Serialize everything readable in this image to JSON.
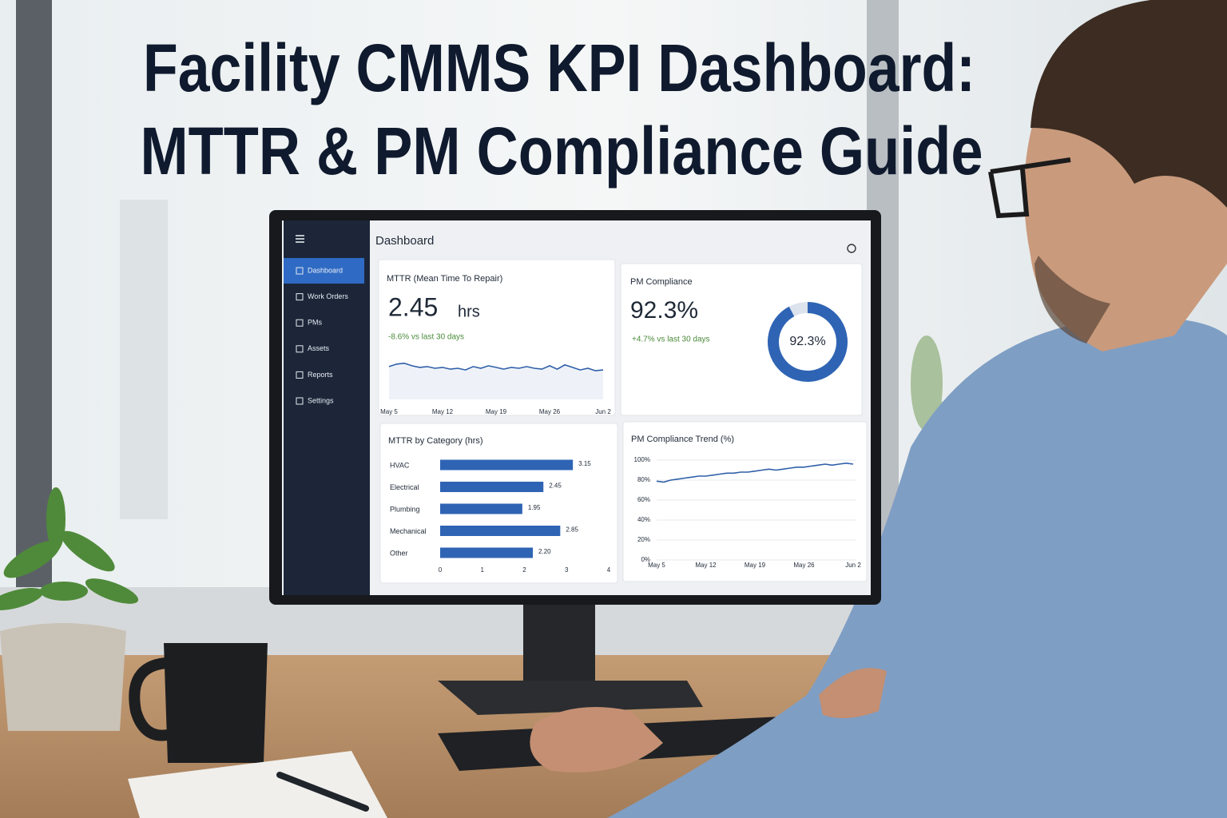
{
  "headline": [
    "Facility CMMS KPI Dashboard:",
    "MTTR & PM Compliance Guide"
  ],
  "sidebar": {
    "items": [
      "Dashboard",
      "Work Orders",
      "PMs",
      "Assets",
      "Reports",
      "Settings"
    ],
    "active": 0
  },
  "header": {
    "title": "Dashboard"
  },
  "mttr_card": {
    "title": "MTTR (Mean Time To Repair)",
    "value": "2.45",
    "unit": "hrs",
    "change": "-8.6% vs last 30 days",
    "chart": {
      "type": "line",
      "color": "#2f5fa8",
      "x_labels": [
        "May 5",
        "May 12",
        "May 19",
        "May 26",
        "Jun 2"
      ],
      "values": [
        2.6,
        2.75,
        2.8,
        2.65,
        2.55,
        2.6,
        2.5,
        2.55,
        2.45,
        2.5,
        2.4,
        2.6,
        2.5,
        2.65,
        2.55,
        2.45,
        2.55,
        2.5,
        2.6,
        2.5,
        2.45,
        2.65,
        2.45,
        2.7,
        2.55,
        2.4,
        2.5,
        2.35,
        2.4
      ],
      "ylim": [
        1.5,
        3.5
      ]
    }
  },
  "pm_card": {
    "title": "PM Compliance",
    "value": "92.3%",
    "change": "+4.7% vs last 30 days",
    "gauge": {
      "type": "donut",
      "value": 92.3,
      "label": "92.3%",
      "max": 100,
      "color": "#2f64b4",
      "track_color": "#dde3ec"
    }
  },
  "category_card": {
    "title": "MTTR by Category (hrs)",
    "chart": {
      "type": "bar",
      "orientation": "horizontal",
      "color": "#2f64b4",
      "categories": [
        "HVAC",
        "Electrical",
        "Plumbing",
        "Mechanical",
        "Other"
      ],
      "values": [
        3.15,
        2.45,
        1.95,
        2.85,
        2.2
      ],
      "value_labels": [
        "3.15",
        "2.45",
        "1.95",
        "2.85",
        "2.20"
      ],
      "xlim": [
        0,
        4
      ],
      "xticks": [
        0,
        1,
        2,
        3,
        4
      ]
    }
  },
  "trend_card": {
    "title": "PM Compliance Trend (%)",
    "chart": {
      "type": "line",
      "color": "#2f5fa8",
      "grid": true,
      "x_labels": [
        "May 5",
        "May 12",
        "May 19",
        "May 26",
        "Jun 2"
      ],
      "values": [
        79,
        78,
        80,
        81,
        82,
        83,
        84,
        84,
        85,
        86,
        87,
        87,
        88,
        88,
        89,
        90,
        91,
        90,
        91,
        92,
        93,
        93,
        94,
        95,
        96,
        95,
        96,
        97,
        96
      ],
      "ylim": [
        0,
        100
      ],
      "yticks": [
        {
          "value": 0,
          "label": "0%"
        },
        {
          "value": 20,
          "label": "20%"
        },
        {
          "value": 40,
          "label": "40%"
        },
        {
          "value": 60,
          "label": "60%"
        },
        {
          "value": 80,
          "label": "80%"
        },
        {
          "value": 100,
          "label": "100%"
        }
      ]
    }
  }
}
